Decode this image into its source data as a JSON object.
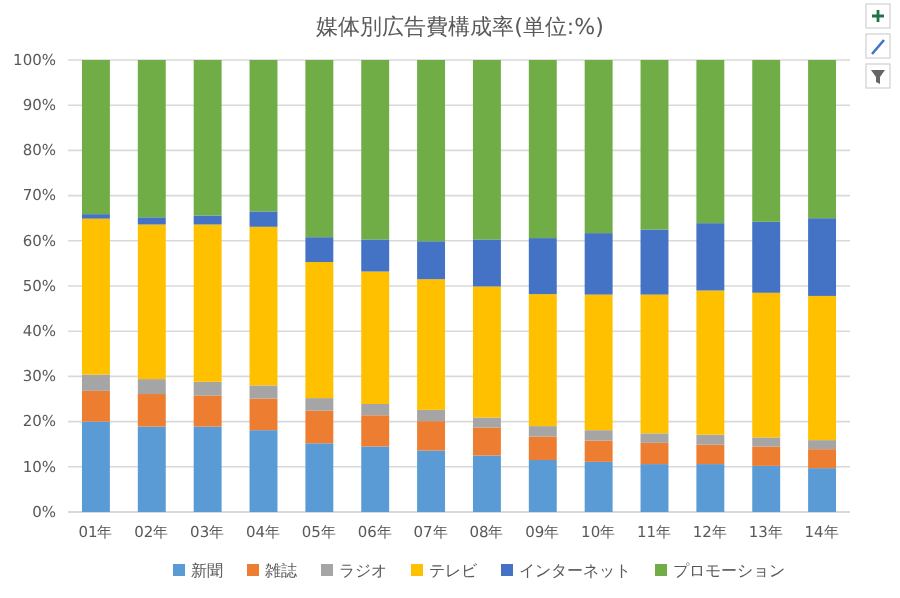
{
  "chart_data": {
    "type": "bar",
    "title": "媒体別広告費構成率(単位:%)",
    "stacked": true,
    "categories": [
      "01年",
      "02年",
      "03年",
      "04年",
      "05年",
      "06年",
      "07年",
      "08年",
      "09年",
      "10年",
      "11年",
      "12年",
      "13年",
      "14年"
    ],
    "series": [
      {
        "name": "新聞",
        "color": "#5b9bd5",
        "values": [
          20.0,
          18.9,
          18.9,
          18.1,
          15.2,
          14.5,
          13.6,
          12.5,
          11.5,
          11.1,
          10.6,
          10.6,
          10.2,
          9.7
        ]
      },
      {
        "name": "雑誌",
        "color": "#ed7d31",
        "values": [
          6.8,
          7.2,
          6.9,
          7.0,
          7.2,
          6.9,
          6.5,
          6.2,
          5.2,
          4.7,
          4.7,
          4.3,
          4.3,
          4.2
        ]
      },
      {
        "name": "ラジオ",
        "color": "#a5a5a5",
        "values": [
          3.6,
          3.3,
          3.0,
          2.9,
          2.8,
          2.5,
          2.5,
          2.2,
          2.3,
          2.3,
          2.1,
          2.2,
          2.0,
          2.0
        ]
      },
      {
        "name": "テレビ",
        "color": "#ffc000",
        "values": [
          34.5,
          34.2,
          34.8,
          35.1,
          30.1,
          29.3,
          28.9,
          29.0,
          29.2,
          30.0,
          30.7,
          31.9,
          32.0,
          31.9
        ]
      },
      {
        "name": "インターネット",
        "color": "#4472c4",
        "values": [
          1.0,
          1.6,
          2.0,
          3.4,
          5.5,
          7.1,
          8.4,
          10.4,
          12.4,
          13.6,
          14.4,
          14.9,
          15.7,
          17.2
        ]
      },
      {
        "name": "プロモーション",
        "color": "#70ad47",
        "values": [
          34.1,
          34.8,
          34.4,
          33.5,
          39.2,
          39.7,
          40.1,
          39.7,
          39.4,
          38.3,
          37.5,
          36.1,
          35.8,
          35.0
        ]
      }
    ],
    "ylim": [
      0,
      100
    ],
    "yticks": [
      {
        "value": 0,
        "label": "0%"
      },
      {
        "value": 10,
        "label": "10%"
      },
      {
        "value": 20,
        "label": "20%"
      },
      {
        "value": 30,
        "label": "30%"
      },
      {
        "value": 40,
        "label": "40%"
      },
      {
        "value": 50,
        "label": "50%"
      },
      {
        "value": 60,
        "label": "60%"
      },
      {
        "value": 70,
        "label": "70%"
      },
      {
        "value": 80,
        "label": "80%"
      },
      {
        "value": 90,
        "label": "90%"
      },
      {
        "value": 100,
        "label": "100%"
      }
    ],
    "grid": "y",
    "legend": "bottom"
  }
}
